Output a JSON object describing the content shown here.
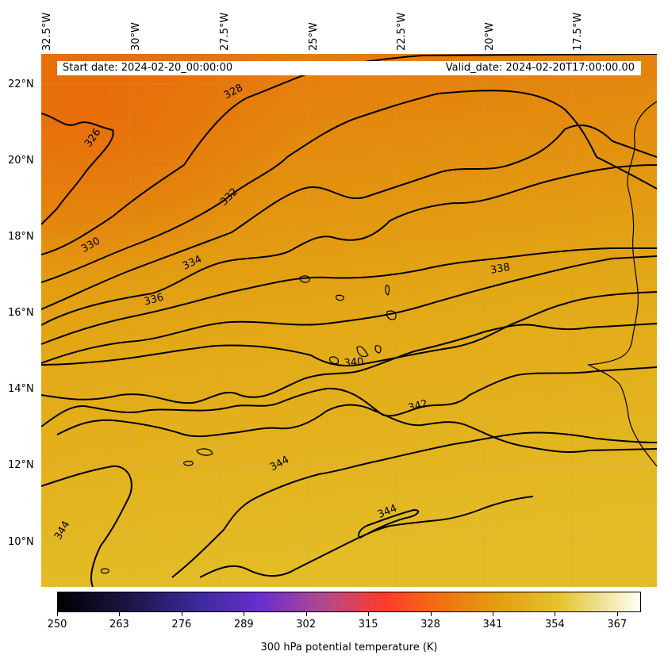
{
  "map": {
    "longitude_labels": [
      "32.5°W",
      "30°W",
      "27.5°W",
      "25°W",
      "22.5°W",
      "20°W",
      "17.5°W"
    ],
    "latitude_labels": [
      "22°N",
      "20°N",
      "18°N",
      "16°N",
      "14°N",
      "12°N",
      "10°N"
    ],
    "start_date": "Start date: 2024-02-20_00:00:00",
    "valid_date": "Valid_date: 2024-02-20T17:00:00.00",
    "contour_labels": [
      "328",
      "326",
      "332",
      "330",
      "334",
      "338",
      "336",
      "340",
      "342",
      "344",
      "344",
      "344"
    ],
    "colors": {
      "field_north": "#e8740c",
      "field_mid": "#e39a10",
      "field_south": "#e4bb25",
      "contour": "#000000"
    }
  },
  "colorbar": {
    "label": "300 hPa potential temperature (K)",
    "ticks": [
      "250",
      "263",
      "276",
      "289",
      "302",
      "315",
      "328",
      "341",
      "354",
      "367"
    ],
    "range": [
      250,
      372
    ]
  }
}
